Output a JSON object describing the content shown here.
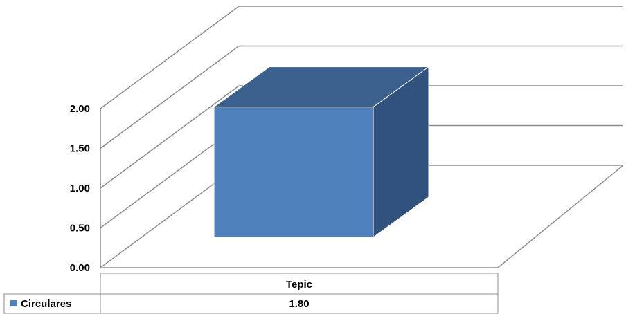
{
  "chart_data": {
    "type": "bar",
    "categories": [
      "Tepic"
    ],
    "series": [
      {
        "name": "Circulares",
        "values": [
          1.8
        ]
      }
    ],
    "y_tick_labels": [
      "0.00",
      "0.50",
      "1.00",
      "1.50",
      "2.00"
    ],
    "ylim": [
      0,
      2
    ],
    "data_table": true,
    "value_labels": [
      "1.80"
    ],
    "grid": true,
    "three_d": true,
    "colors": {
      "bar_front": "#4f81bd",
      "bar_side": "#30527c",
      "bar_top": "#3c618f",
      "grid": "#8c8c8c"
    }
  }
}
